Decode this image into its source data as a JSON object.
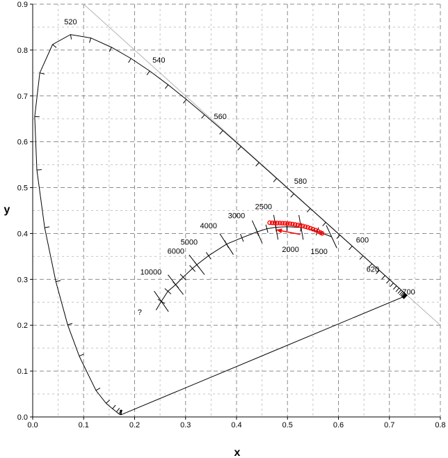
{
  "chart_data": {
    "type": "scatter",
    "title": "",
    "xlabel": "x",
    "ylabel": "y",
    "xlim": [
      0.0,
      0.8
    ],
    "ylim": [
      0.0,
      0.9
    ],
    "x_ticks": [
      "0.0",
      "0.1",
      "0.2",
      "0.3",
      "0.4",
      "0.5",
      "0.6",
      "0.7",
      "0.8"
    ],
    "y_ticks": [
      "0.0",
      "0.1",
      "0.2",
      "0.3",
      "0.4",
      "0.5",
      "0.6",
      "0.7",
      "0.8",
      "0.9"
    ],
    "grid": true,
    "spectral_locus": [
      [
        0.1741,
        0.005
      ],
      [
        0.1738,
        0.0049
      ],
      [
        0.1736,
        0.005
      ],
      [
        0.1733,
        0.0048
      ],
      [
        0.1726,
        0.0048
      ],
      [
        0.1714,
        0.0051
      ],
      [
        0.1689,
        0.0069
      ],
      [
        0.1644,
        0.0109
      ],
      [
        0.1566,
        0.0177
      ],
      [
        0.144,
        0.0297
      ],
      [
        0.1241,
        0.0578
      ],
      [
        0.0913,
        0.1327
      ],
      [
        0.0687,
        0.2007
      ],
      [
        0.0454,
        0.295
      ],
      [
        0.0235,
        0.4127
      ],
      [
        0.0082,
        0.5384
      ],
      [
        0.0039,
        0.6548
      ],
      [
        0.0139,
        0.7502
      ],
      [
        0.0389,
        0.812
      ],
      [
        0.0743,
        0.8338
      ],
      [
        0.1142,
        0.8262
      ],
      [
        0.1547,
        0.8059
      ],
      [
        0.1929,
        0.7816
      ],
      [
        0.2296,
        0.7543
      ],
      [
        0.2658,
        0.7243
      ],
      [
        0.3016,
        0.6923
      ],
      [
        0.3373,
        0.6589
      ],
      [
        0.3731,
        0.6245
      ],
      [
        0.4087,
        0.5896
      ],
      [
        0.4441,
        0.5547
      ],
      [
        0.4788,
        0.5202
      ],
      [
        0.5125,
        0.4866
      ],
      [
        0.5448,
        0.4544
      ],
      [
        0.5752,
        0.4242
      ],
      [
        0.6029,
        0.3965
      ],
      [
        0.627,
        0.3725
      ],
      [
        0.6482,
        0.3514
      ],
      [
        0.6658,
        0.334
      ],
      [
        0.6801,
        0.3197
      ],
      [
        0.6915,
        0.3083
      ],
      [
        0.7006,
        0.2993
      ],
      [
        0.7079,
        0.292
      ],
      [
        0.714,
        0.2859
      ],
      [
        0.719,
        0.2809
      ],
      [
        0.723,
        0.277
      ],
      [
        0.726,
        0.274
      ],
      [
        0.7283,
        0.2717
      ],
      [
        0.73,
        0.27
      ],
      [
        0.7311,
        0.2689
      ],
      [
        0.732,
        0.268
      ],
      [
        0.7327,
        0.2673
      ],
      [
        0.7334,
        0.2666
      ],
      [
        0.734,
        0.266
      ],
      [
        0.7344,
        0.2656
      ],
      [
        0.7346,
        0.2654
      ],
      [
        0.7347,
        0.2653
      ]
    ],
    "wavelength_labels": [
      {
        "label": "520",
        "x": 0.0743,
        "y": 0.8338,
        "dx": 0.0,
        "dy": 0.022
      },
      {
        "label": "540",
        "x": 0.2296,
        "y": 0.7543,
        "dx": 0.018,
        "dy": 0.018
      },
      {
        "label": "560",
        "x": 0.3731,
        "y": 0.6245,
        "dx": -0.005,
        "dy": 0.025
      },
      {
        "label": "580",
        "x": 0.5125,
        "y": 0.4866,
        "dx": 0.013,
        "dy": 0.022
      },
      {
        "label": "600",
        "x": 0.627,
        "y": 0.3725,
        "dx": 0.02,
        "dy": 0.008
      },
      {
        "label": "620",
        "x": 0.6915,
        "y": 0.3083,
        "dx": -0.024,
        "dy": 0.008
      }
    ],
    "wavelength_label_700": "700",
    "planckian_locus": [
      [
        0.242,
        0.233
      ],
      [
        0.2524,
        0.252
      ],
      [
        0.2653,
        0.274
      ],
      [
        0.2806,
        0.2883
      ],
      [
        0.2952,
        0.3048
      ],
      [
        0.3135,
        0.3237
      ],
      [
        0.3221,
        0.3318
      ],
      [
        0.3451,
        0.3516
      ],
      [
        0.3805,
        0.3768
      ],
      [
        0.4106,
        0.3906
      ],
      [
        0.4405,
        0.4035
      ],
      [
        0.4596,
        0.4104
      ],
      [
        0.4772,
        0.4136
      ],
      [
        0.4987,
        0.4146
      ],
      [
        0.5266,
        0.4133
      ],
      [
        0.5586,
        0.4046
      ],
      [
        0.5865,
        0.393
      ]
    ],
    "isotherms": [
      {
        "x": 0.2524,
        "y": 0.252,
        "angle": -55
      },
      {
        "x": 0.2806,
        "y": 0.2883,
        "angle": -52
      },
      {
        "x": 0.3221,
        "y": 0.3318,
        "angle": -52
      },
      {
        "x": 0.3805,
        "y": 0.3768,
        "angle": -57
      },
      {
        "x": 0.4406,
        "y": 0.4035,
        "angle": -66
      },
      {
        "x": 0.4772,
        "y": 0.4136,
        "angle": -80
      },
      {
        "x": 0.5266,
        "y": 0.4133,
        "angle": 100
      },
      {
        "x": 0.5865,
        "y": 0.393,
        "angle": 115
      }
    ],
    "temperature_labels": [
      {
        "label": "?",
        "x": 0.21,
        "y": 0.223
      },
      {
        "label": "10000",
        "x": 0.232,
        "y": 0.31
      },
      {
        "label": "6000",
        "x": 0.281,
        "y": 0.356
      },
      {
        "label": "5000",
        "x": 0.307,
        "y": 0.376
      },
      {
        "label": "4000",
        "x": 0.345,
        "y": 0.411
      },
      {
        "label": "3000",
        "x": 0.4,
        "y": 0.433
      },
      {
        "label": "2500",
        "x": 0.453,
        "y": 0.453
      },
      {
        "label": "2000",
        "x": 0.506,
        "y": 0.36
      },
      {
        "label": "1500",
        "x": 0.562,
        "y": 0.355
      }
    ],
    "series": [
      {
        "color": "#ff0000",
        "points": [
          [
            0.465,
            0.4235
          ],
          [
            0.47,
            0.4232
          ],
          [
            0.475,
            0.423
          ],
          [
            0.48,
            0.4228
          ],
          [
            0.485,
            0.4227
          ],
          [
            0.49,
            0.4225
          ],
          [
            0.495,
            0.4222
          ],
          [
            0.5,
            0.4217
          ],
          [
            0.505,
            0.4212
          ],
          [
            0.51,
            0.4205
          ],
          [
            0.515,
            0.4196
          ],
          [
            0.52,
            0.4186
          ],
          [
            0.525,
            0.4175
          ],
          [
            0.53,
            0.4163
          ],
          [
            0.535,
            0.4149
          ],
          [
            0.54,
            0.4133
          ],
          [
            0.545,
            0.4115
          ],
          [
            0.55,
            0.4095
          ],
          [
            0.555,
            0.4073
          ],
          [
            0.56,
            0.4048
          ],
          [
            0.565,
            0.402
          ],
          [
            0.568,
            0.4003
          ]
        ]
      }
    ],
    "arrow": {
      "from": [
        0.525,
        0.398
      ],
      "to": [
        0.478,
        0.408
      ],
      "color": "#ff0000"
    }
  }
}
